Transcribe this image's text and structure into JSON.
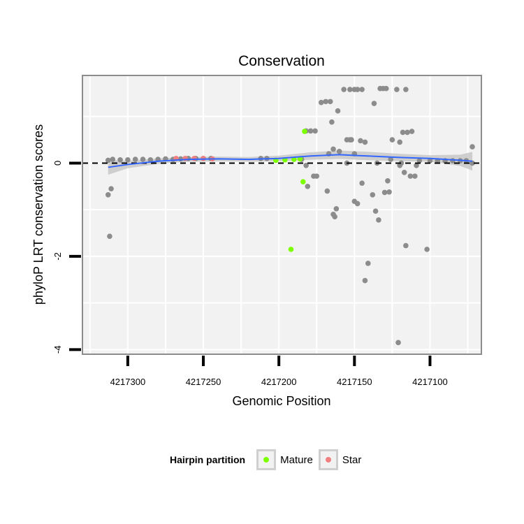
{
  "chart_data": {
    "type": "scatter",
    "title": "Conservation",
    "xlabel": "Genomic Position",
    "ylabel": "phyloP LRT conservation scores",
    "x_reversed": true,
    "xlim": [
      4217066,
      4217330
    ],
    "ylim": [
      -4.1,
      1.88
    ],
    "x_ticks": [
      4217300,
      4217250,
      4217200,
      4217150,
      4217100
    ],
    "x_tick_labels": [
      "4217300",
      "4217250",
      "4217200",
      "4217150",
      "4217100"
    ],
    "y_ticks": [
      -4,
      -2,
      0
    ],
    "y_tick_labels": [
      "-4",
      "-2",
      "0"
    ],
    "hline": 0,
    "grid": true,
    "colors": {
      "background": "#f2f2f2",
      "grid": "#ffffff",
      "panel_border": "#8c8c8c",
      "other_points": "#8c8c8c",
      "mature": "#7cff00",
      "star": "#f08080",
      "smooth_line": "#3366ff",
      "ribbon": "#c8c8c8"
    },
    "series": [
      {
        "group": "other",
        "points": [
          [
            4217313,
            -0.68
          ],
          [
            4217311,
            -0.55
          ],
          [
            4217312,
            -1.57
          ],
          [
            4217313,
            0.06
          ],
          [
            4217310,
            0.08
          ],
          [
            4217305,
            0.07
          ],
          [
            4217300,
            0.07
          ],
          [
            4217295,
            0.08
          ],
          [
            4217290,
            0.08
          ],
          [
            4217285,
            0.07
          ],
          [
            4217280,
            0.08
          ],
          [
            4217275,
            0.09
          ],
          [
            4217270,
            0.08
          ],
          [
            4217265,
            0.09
          ],
          [
            4217260,
            0.1
          ],
          [
            4217255,
            0.1
          ],
          [
            4217250,
            0.1
          ],
          [
            4217245,
            0.1
          ],
          [
            4217212,
            0.1
          ],
          [
            4217208,
            0.1
          ],
          [
            4217185,
            0.08
          ],
          [
            4217182,
            -0.05
          ],
          [
            4217181,
            -0.5
          ],
          [
            4217182,
            0.69
          ],
          [
            4217179,
            0.69
          ],
          [
            4217176,
            0.69
          ],
          [
            4217177,
            -0.28
          ],
          [
            4217175,
            -0.28
          ],
          [
            4217172,
            1.3
          ],
          [
            4217169,
            1.32
          ],
          [
            4217166,
            1.32
          ],
          [
            4217165,
            0.88
          ],
          [
            4217161,
            1.12
          ],
          [
            4217168,
            -0.6
          ],
          [
            4217164,
            -1.1
          ],
          [
            4217163,
            -1.15
          ],
          [
            4217162,
            -0.98
          ],
          [
            4217167,
            0.2
          ],
          [
            4217164,
            0.3
          ],
          [
            4217160,
            0.25
          ],
          [
            4217155,
            0.5
          ],
          [
            4217153,
            0.5
          ],
          [
            4217152,
            0.5
          ],
          [
            4217157,
            1.58
          ],
          [
            4217153,
            1.58
          ],
          [
            4217150,
            1.58
          ],
          [
            4217148,
            1.58
          ],
          [
            4217145,
            1.58
          ],
          [
            4217155,
            0.0
          ],
          [
            4217150,
            0.2
          ],
          [
            4217150,
            -0.82
          ],
          [
            4217148,
            -0.87
          ],
          [
            4217145,
            -0.43
          ],
          [
            4217146,
            0.48
          ],
          [
            4217143,
            0.45
          ],
          [
            4217143,
            -2.52
          ],
          [
            4217141,
            -2.15
          ],
          [
            4217138,
            -0.68
          ],
          [
            4217136,
            -1.03
          ],
          [
            4217134,
            -1.22
          ],
          [
            4217137,
            1.28
          ],
          [
            4217135,
            0.0
          ],
          [
            4217133,
            1.6
          ],
          [
            4217131,
            1.6
          ],
          [
            4217129,
            1.6
          ],
          [
            4217130,
            -0.63
          ],
          [
            4217127,
            -0.62
          ],
          [
            4217128,
            -0.38
          ],
          [
            4217126,
            0.08
          ],
          [
            4217125,
            0.5
          ],
          [
            4217122,
            1.58
          ],
          [
            4217120,
            0.45
          ],
          [
            4217120,
            -0.05
          ],
          [
            4217119,
            0.0
          ],
          [
            4217118,
            0.66
          ],
          [
            4217116,
            1.58
          ],
          [
            4217115,
            0.66
          ],
          [
            4217112,
            0.68
          ],
          [
            4217117,
            -0.2
          ],
          [
            4217121,
            -3.85
          ],
          [
            4217116,
            -1.77
          ],
          [
            4217113,
            -0.28
          ],
          [
            4217110,
            -0.28
          ],
          [
            4217109,
            -0.05
          ],
          [
            4217107,
            0.05
          ],
          [
            4217102,
            -1.85
          ],
          [
            4217100,
            0.05
          ],
          [
            4217095,
            0.05
          ],
          [
            4217090,
            0.05
          ],
          [
            4217085,
            0.05
          ],
          [
            4217080,
            0.05
          ],
          [
            4217076,
            0.05
          ],
          [
            4217072,
            0.0
          ],
          [
            4217072,
            0.35
          ]
        ]
      },
      {
        "group": "Star",
        "points": [
          [
            4217268,
            0.1
          ],
          [
            4217262,
            0.1
          ],
          [
            4217256,
            0.1
          ],
          [
            4217250,
            0.1
          ],
          [
            4217244,
            0.09
          ]
        ]
      },
      {
        "group": "Mature",
        "points": [
          [
            4217202,
            0.06
          ],
          [
            4217196,
            0.07
          ],
          [
            4217190,
            0.08
          ],
          [
            4217186,
            0.09
          ],
          [
            4217184,
            -0.4
          ],
          [
            4217183,
            0.68
          ],
          [
            4217192,
            -1.85
          ]
        ]
      }
    ],
    "smooth": {
      "x": [
        4217313,
        4217300,
        4217280,
        4217260,
        4217240,
        4217220,
        4217200,
        4217180,
        4217160,
        4217140,
        4217120,
        4217100,
        4217080,
        4217072
      ],
      "y": [
        -0.09,
        -0.03,
        0.04,
        0.08,
        0.09,
        0.08,
        0.1,
        0.15,
        0.18,
        0.15,
        0.12,
        0.1,
        0.06,
        0.04
      ],
      "ribbon_half_width": [
        0.16,
        0.08,
        0.06,
        0.05,
        0.05,
        0.05,
        0.06,
        0.08,
        0.09,
        0.09,
        0.08,
        0.07,
        0.12,
        0.2
      ]
    },
    "legend": {
      "title": "Hairpin partition",
      "position": "bottom",
      "entries": [
        "Mature",
        "Star"
      ]
    }
  }
}
